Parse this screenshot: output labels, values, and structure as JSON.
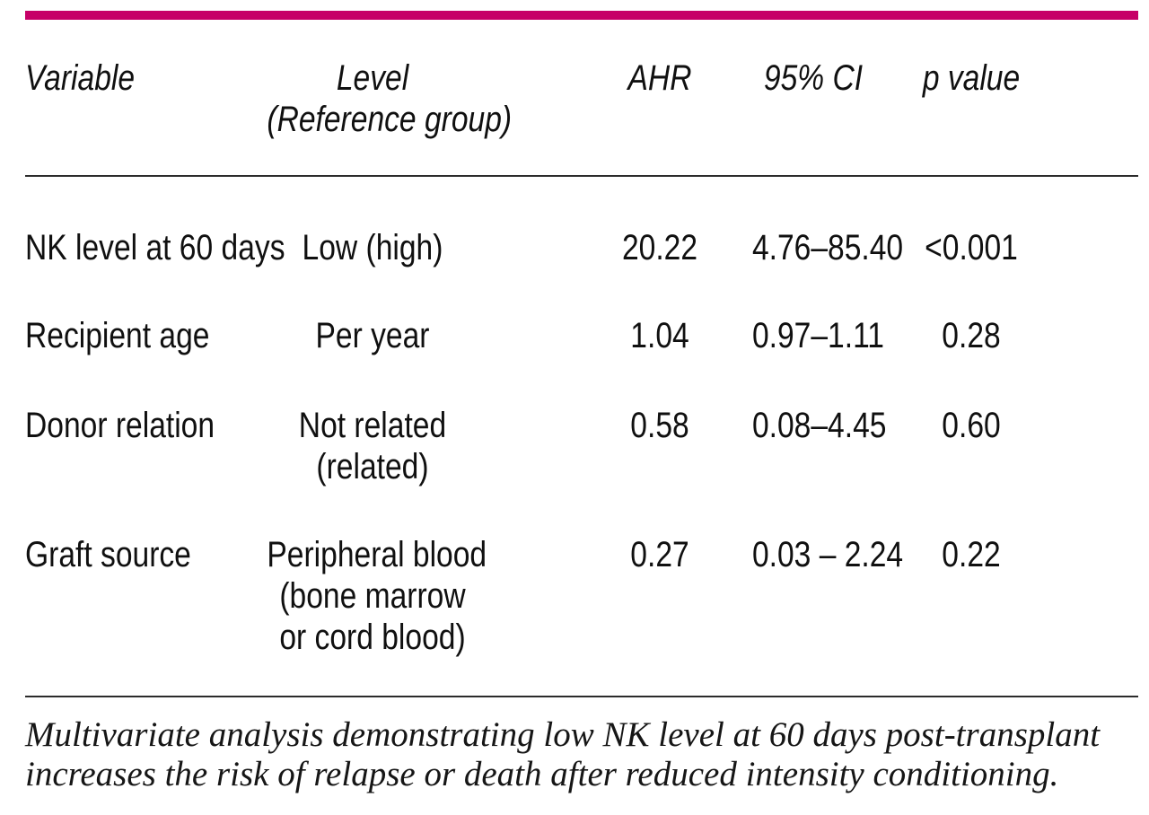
{
  "accent_bar_color": "#c60067",
  "table": {
    "columns": {
      "variable": "Variable",
      "level_line1": "Level",
      "level_line2": "(Reference group)",
      "ahr": "AHR",
      "ci": "95% CI",
      "p": "p value"
    },
    "rows": [
      {
        "variable": "NK level at 60 days",
        "level": [
          "Low (high)"
        ],
        "ahr": "20.22",
        "ci": "4.76–85.40",
        "p": "<0.001"
      },
      {
        "variable": "Recipient age",
        "level": [
          "Per year"
        ],
        "ahr": "1.04",
        "ci": "0.97–1.11",
        "p": "0.28"
      },
      {
        "variable": "Donor relation",
        "level": [
          "Not related",
          "(related)"
        ],
        "ahr": "0.58",
        "ci": "0.08–4.45",
        "p": "0.60"
      },
      {
        "variable": "Graft source",
        "level": [
          "Peripheral blood",
          "(bone marrow",
          "or cord blood)"
        ],
        "ahr": "0.27",
        "ci": "0.03 – 2.24",
        "p": "0.22"
      }
    ]
  },
  "caption": {
    "line1": "Multivariate analysis demonstrating low NK level at 60 days post-transplant",
    "line2": "increases the risk of relapse or death after reduced intensity conditioning."
  }
}
